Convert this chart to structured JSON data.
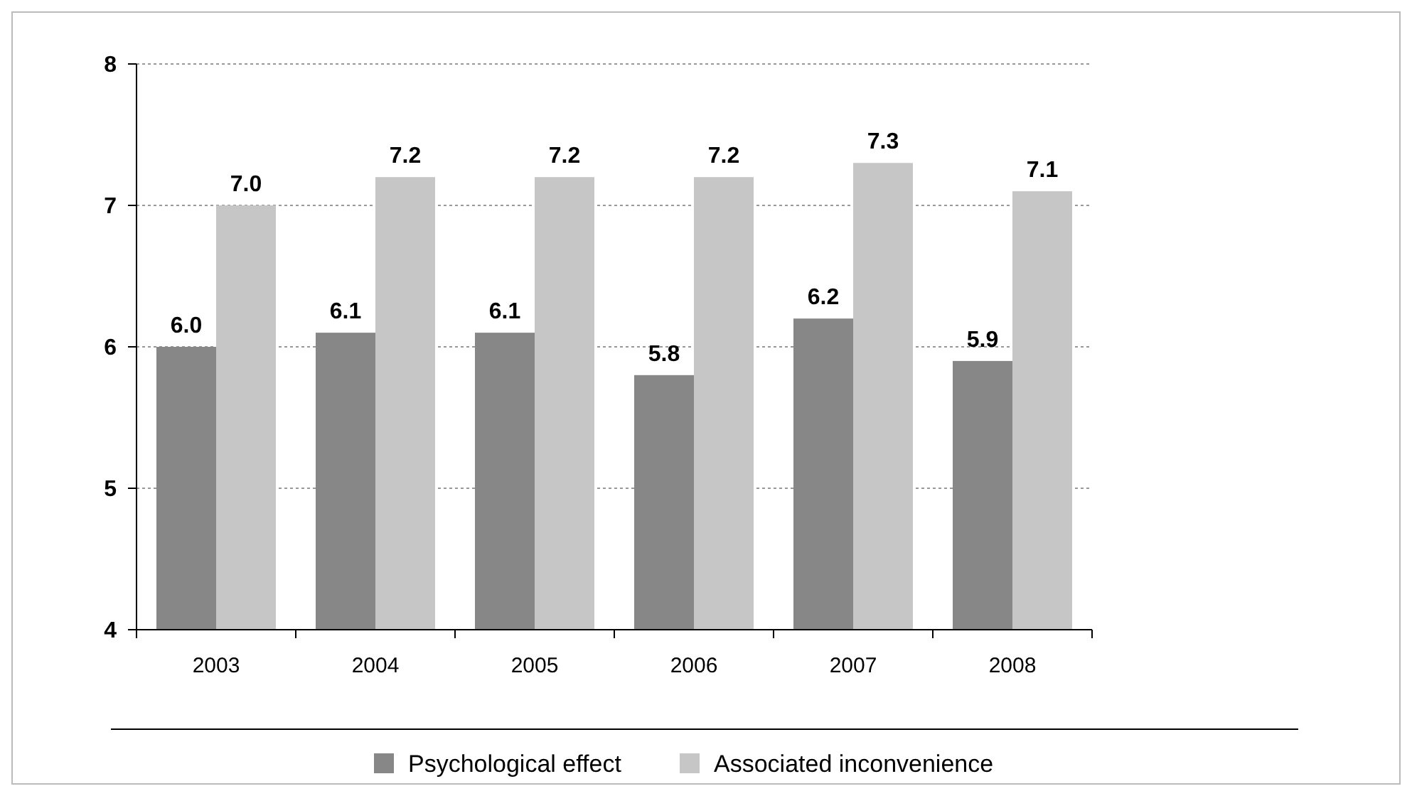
{
  "chart_data": {
    "type": "bar",
    "categories": [
      "2003",
      "2004",
      "2005",
      "2006",
      "2007",
      "2008"
    ],
    "series": [
      {
        "name": "Psychological effect",
        "color": "#878787",
        "values": [
          6.0,
          6.1,
          6.1,
          5.8,
          6.2,
          5.9
        ],
        "value_labels": [
          "6.0",
          "6.1",
          "6.1",
          "5.8",
          "6.2",
          "5.9"
        ]
      },
      {
        "name": "Associated inconvenience",
        "color": "#c6c6c6",
        "values": [
          7.0,
          7.2,
          7.2,
          7.2,
          7.3,
          7.1
        ],
        "value_labels": [
          "7.0",
          "7.2",
          "7.2",
          "7.2",
          "7.3",
          "7.1"
        ]
      }
    ],
    "ylim": [
      4,
      8
    ],
    "yticks": [
      4,
      5,
      6,
      7,
      8
    ],
    "grid": "y",
    "legend": "bottom"
  }
}
